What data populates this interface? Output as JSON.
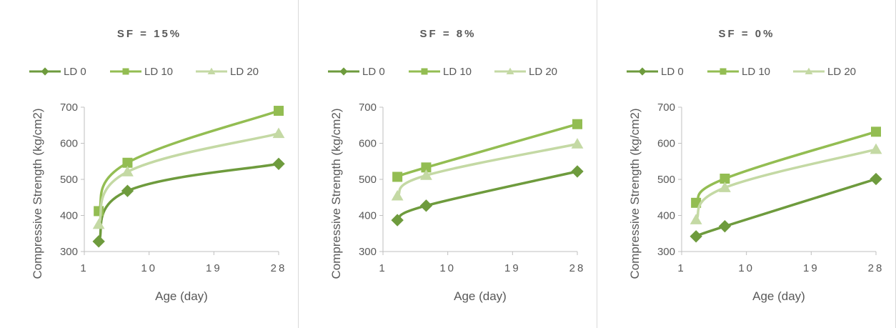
{
  "colors": {
    "LD 0": "#6e9b3d",
    "LD 10": "#93bd52",
    "LD 20": "#c4d9a4",
    "text": "#595959",
    "axis": "#bfbfbf"
  },
  "chart_data": [
    {
      "type": "line",
      "title": "SF = 15%",
      "xlabel": "Age (day)",
      "ylabel": "Compressive Strength (kg/cm2)",
      "xticks": [
        "1",
        "10",
        "19",
        "28"
      ],
      "yticks": [
        "300",
        "400",
        "500",
        "600",
        "700"
      ],
      "xlim": [
        1,
        28
      ],
      "ylim": [
        300,
        700
      ],
      "legend_position": "top",
      "smooth": true,
      "x": [
        3,
        7,
        28
      ],
      "series": [
        {
          "name": "LD 0",
          "marker": "diamond",
          "values": [
            328,
            468,
            543
          ]
        },
        {
          "name": "LD 10",
          "marker": "square",
          "values": [
            412,
            546,
            690
          ]
        },
        {
          "name": "LD 20",
          "marker": "triangle",
          "values": [
            375,
            521,
            627
          ]
        }
      ]
    },
    {
      "type": "line",
      "title": "SF = 8%",
      "xlabel": "Age (day)",
      "ylabel": "Compressive Strength (kg/cm2)",
      "xticks": [
        "1",
        "10",
        "19",
        "28"
      ],
      "yticks": [
        "300",
        "400",
        "500",
        "600",
        "700"
      ],
      "xlim": [
        1,
        28
      ],
      "ylim": [
        300,
        700
      ],
      "legend_position": "top",
      "smooth": true,
      "x": [
        3,
        7,
        28
      ],
      "series": [
        {
          "name": "LD 0",
          "marker": "diamond",
          "values": [
            387,
            427,
            522
          ]
        },
        {
          "name": "LD 10",
          "marker": "square",
          "values": [
            507,
            533,
            653
          ]
        },
        {
          "name": "LD 20",
          "marker": "triangle",
          "values": [
            454,
            511,
            598
          ]
        }
      ]
    },
    {
      "type": "line",
      "title": "SF = 0%",
      "xlabel": "Age (day)",
      "ylabel": "Compressive Strength (kg/cm2)",
      "xticks": [
        "1",
        "10",
        "19",
        "28"
      ],
      "yticks": [
        "300",
        "400",
        "500",
        "600",
        "700"
      ],
      "xlim": [
        1,
        28
      ],
      "ylim": [
        300,
        700
      ],
      "legend_position": "top",
      "smooth": true,
      "x": [
        3,
        7,
        28
      ],
      "series": [
        {
          "name": "LD 0",
          "marker": "diamond",
          "values": [
            342,
            370,
            501
          ]
        },
        {
          "name": "LD 10",
          "marker": "square",
          "values": [
            435,
            502,
            632
          ]
        },
        {
          "name": "LD 20",
          "marker": "triangle",
          "values": [
            388,
            477,
            583
          ]
        }
      ]
    }
  ]
}
